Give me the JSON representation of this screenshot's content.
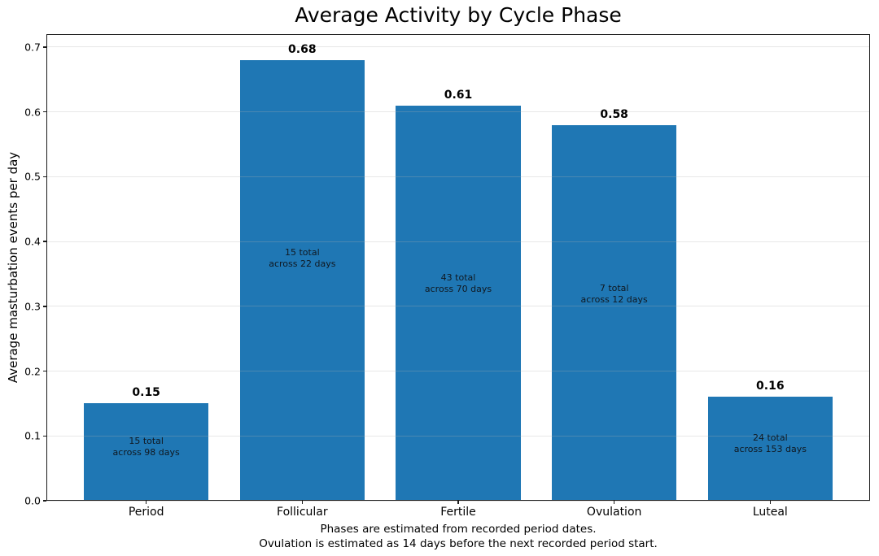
{
  "title": "Average Activity by Cycle Phase",
  "y_axis_label": "Average masturbation events per day",
  "caption": {
    "line1": "Phases are estimated from recorded period dates.",
    "line2": "Ovulation is estimated as 14 days before the next recorded period start."
  },
  "colors": {
    "bar_fill": "#1f77b4",
    "grid_line": "rgba(176,176,176,0.3)",
    "axis_spine": "#1a1a1a",
    "tick_mark": "#1a1a1a",
    "value_label_text": "#000000",
    "bar_annotation_text": "#101820"
  },
  "chart_data": {
    "type": "bar",
    "title": "Average Activity by Cycle Phase",
    "xlabel": "",
    "ylabel": "Average masturbation events per day",
    "categories": [
      "Period",
      "Follicular",
      "Fertile",
      "Ovulation",
      "Luteal"
    ],
    "values": [
      0.15,
      0.68,
      0.61,
      0.58,
      0.16
    ],
    "value_labels": [
      "0.15",
      "0.68",
      "0.61",
      "0.58",
      "0.16"
    ],
    "bar_annotations": [
      [
        "15 total",
        "across 98 days"
      ],
      [
        "15 total",
        "across 22 days"
      ],
      [
        "43 total",
        "across 70 days"
      ],
      [
        "7 total",
        "across 12 days"
      ],
      [
        "24 total",
        "across 153 days"
      ]
    ],
    "ylim": [
      0,
      0.72
    ],
    "yticks": [
      "0.0",
      "0.1",
      "0.2",
      "0.3",
      "0.4",
      "0.5",
      "0.6",
      "0.7"
    ],
    "grid": "horizontal",
    "legend": "none",
    "bar_width_fraction": 0.8
  }
}
